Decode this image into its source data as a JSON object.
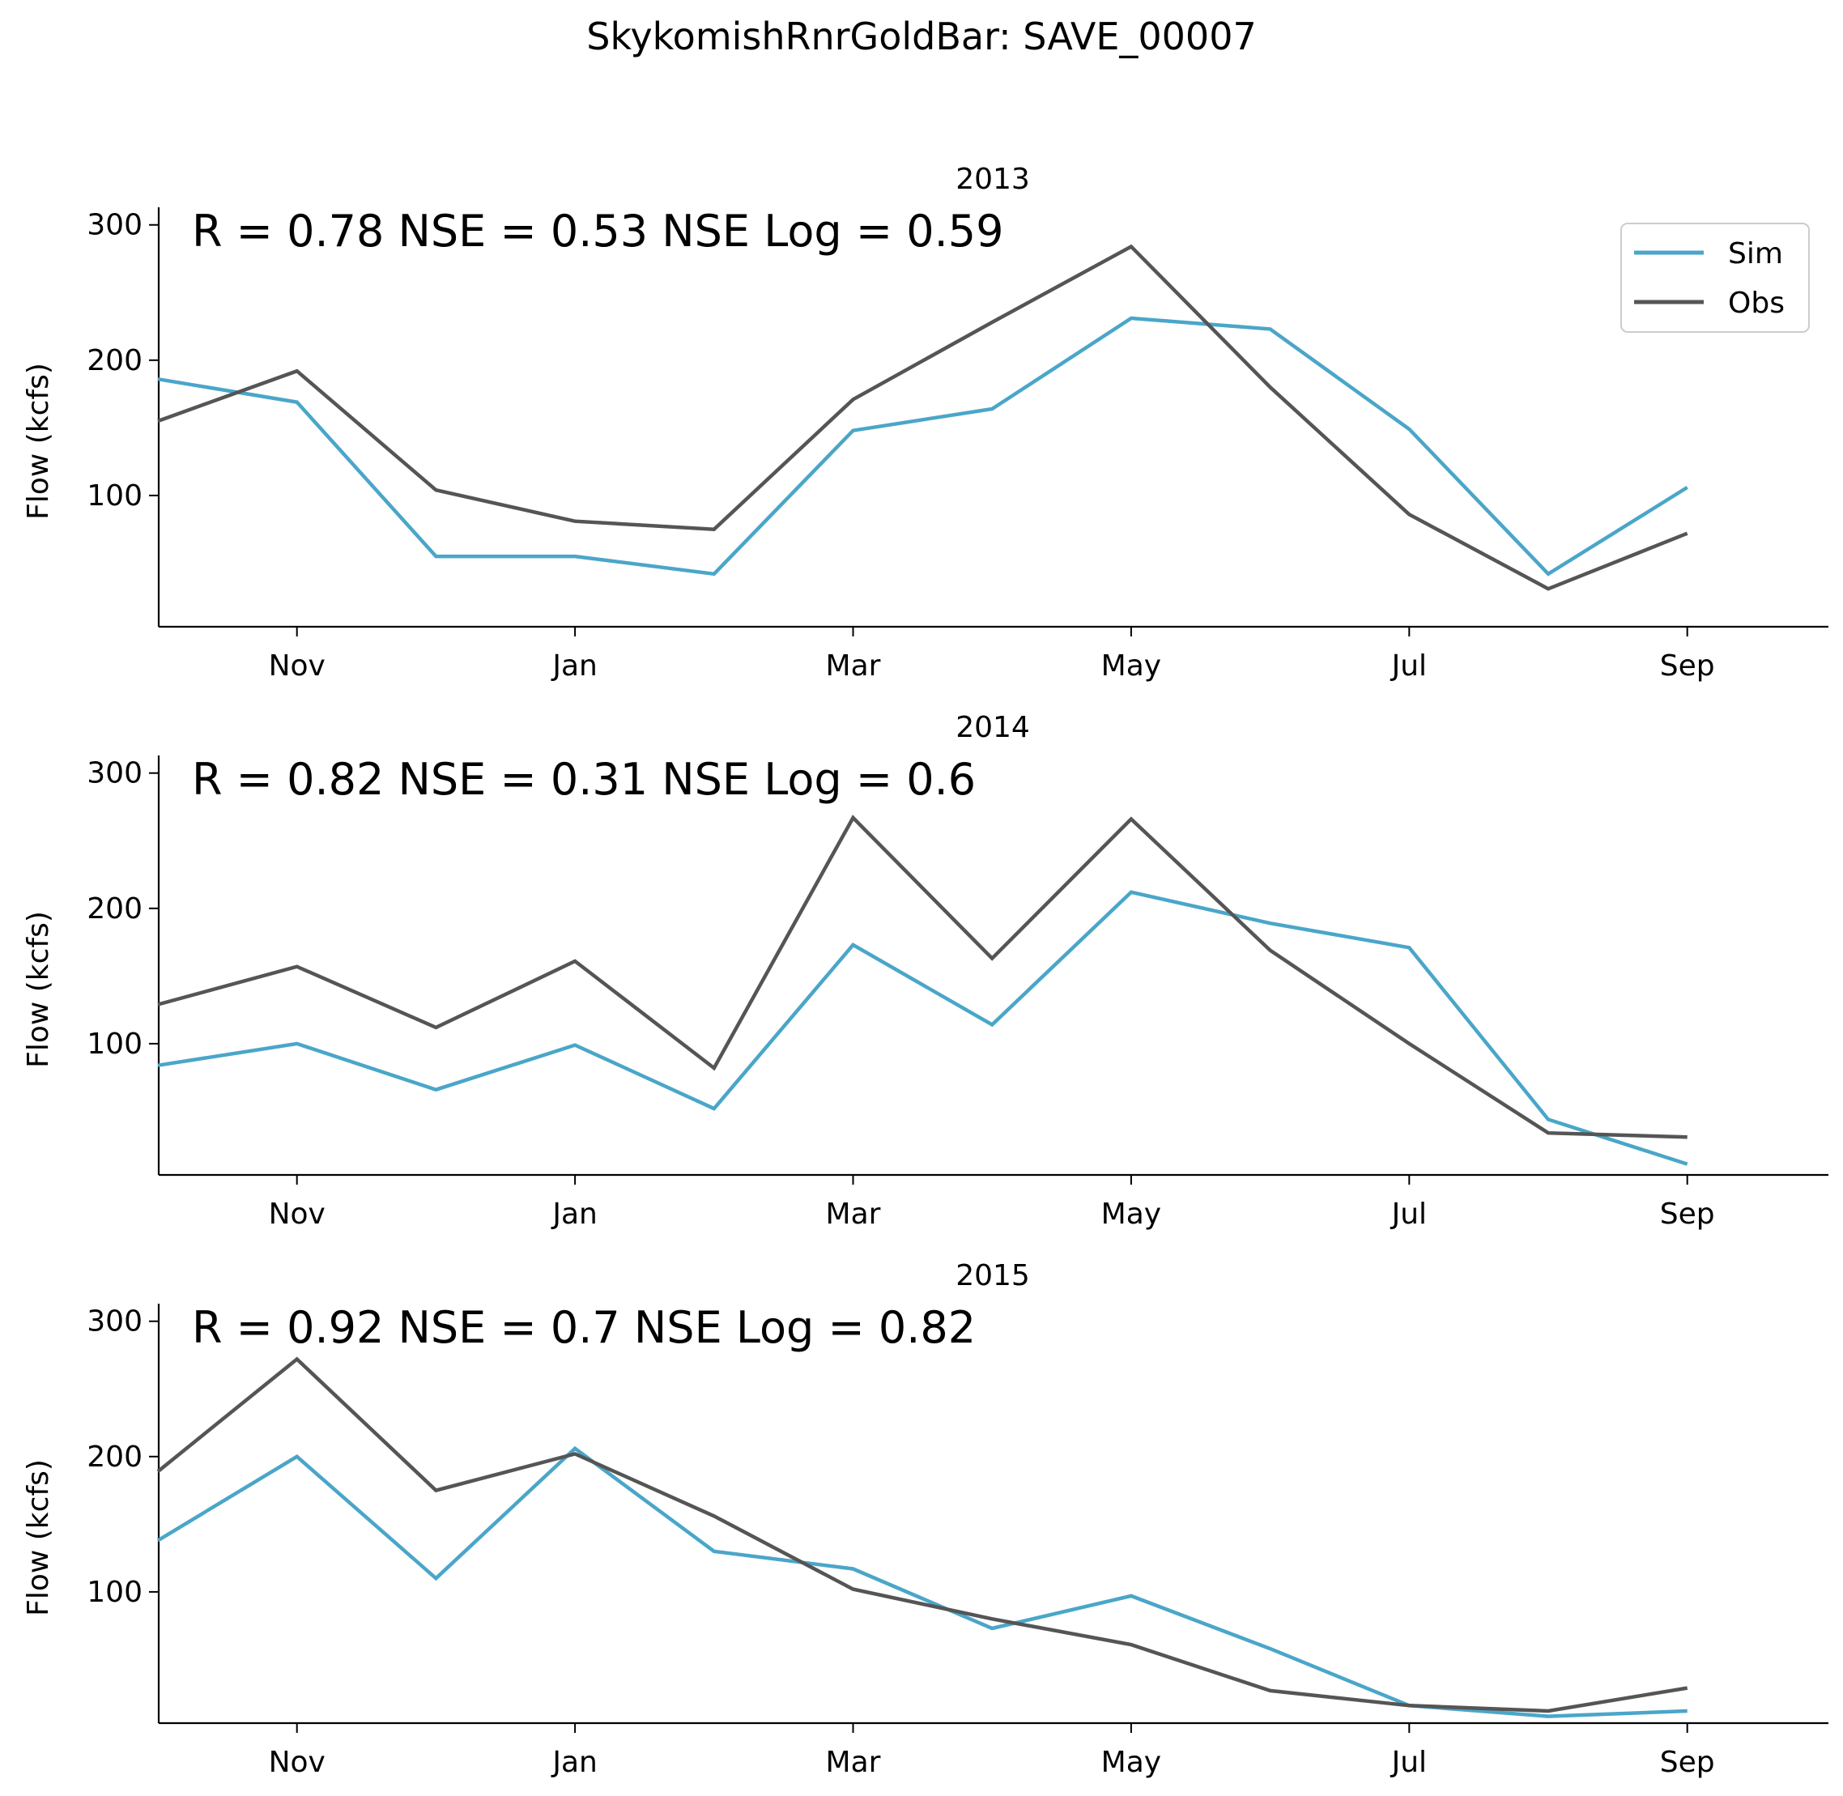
{
  "figure": {
    "suptitle": "SkykomishRnrGoldBar: SAVE_00007"
  },
  "colors": {
    "sim": "#4aa6c9",
    "obs": "#555555",
    "axis": "#000000"
  },
  "legend": {
    "location": "top-right",
    "entries": [
      "Sim",
      "Obs"
    ]
  },
  "chart_data": [
    {
      "type": "line",
      "title": "2013",
      "ylabel": "Flow (kcfs)",
      "xlabel": "",
      "annotation": "R = 0.78  NSE = 0.53  NSE Log = 0.59",
      "x_ticks": [
        "Nov",
        "Jan",
        "Mar",
        "May",
        "Jul",
        "Sep"
      ],
      "y_ticks": [
        100,
        200,
        300
      ],
      "ylim": [
        3,
        313
      ],
      "grid": false,
      "x": [
        "Oct",
        "Nov",
        "Dec",
        "Jan",
        "Feb",
        "Mar",
        "Apr",
        "May",
        "Jun",
        "Jul",
        "Aug",
        "Sep"
      ],
      "series": [
        {
          "name": "Sim",
          "values": [
            186,
            169,
            55,
            55,
            42,
            148,
            164,
            231,
            223,
            149,
            42,
            106
          ]
        },
        {
          "name": "Obs",
          "values": [
            155,
            192,
            104,
            81,
            75,
            171,
            228,
            284,
            180,
            86,
            31,
            72
          ]
        }
      ]
    },
    {
      "type": "line",
      "title": "2014",
      "ylabel": "Flow (kcfs)",
      "xlabel": "",
      "annotation": "R = 0.82  NSE = 0.31  NSE Log = 0.6",
      "x_ticks": [
        "Nov",
        "Jan",
        "Mar",
        "May",
        "Jul",
        "Sep"
      ],
      "y_ticks": [
        100,
        200,
        300
      ],
      "ylim": [
        3,
        313
      ],
      "grid": false,
      "x": [
        "Oct",
        "Nov",
        "Dec",
        "Jan",
        "Feb",
        "Mar",
        "Apr",
        "May",
        "Jun",
        "Jul",
        "Aug",
        "Sep"
      ],
      "series": [
        {
          "name": "Sim",
          "values": [
            84,
            100,
            66,
            99,
            52,
            173,
            114,
            212,
            189,
            171,
            44,
            11
          ]
        },
        {
          "name": "Obs",
          "values": [
            129,
            157,
            112,
            161,
            82,
            267,
            163,
            266,
            169,
            100,
            34,
            31
          ]
        }
      ]
    },
    {
      "type": "line",
      "title": "2015",
      "ylabel": "Flow (kcfs)",
      "xlabel": "",
      "annotation": "R = 0.92  NSE = 0.7  NSE Log = 0.82",
      "x_ticks": [
        "Nov",
        "Jan",
        "Mar",
        "May",
        "Jul",
        "Sep"
      ],
      "y_ticks": [
        100,
        200,
        300
      ],
      "ylim": [
        3,
        313
      ],
      "grid": false,
      "x": [
        "Oct",
        "Nov",
        "Dec",
        "Jan",
        "Feb",
        "Mar",
        "Apr",
        "May",
        "Jun",
        "Jul",
        "Aug",
        "Sep"
      ],
      "series": [
        {
          "name": "Sim",
          "values": [
            138,
            200,
            110,
            206,
            130,
            117,
            73,
            97,
            58,
            16,
            8,
            12
          ]
        },
        {
          "name": "Obs",
          "values": [
            189,
            272,
            175,
            202,
            156,
            102,
            80,
            61,
            27,
            16,
            12,
            29
          ]
        }
      ]
    }
  ]
}
